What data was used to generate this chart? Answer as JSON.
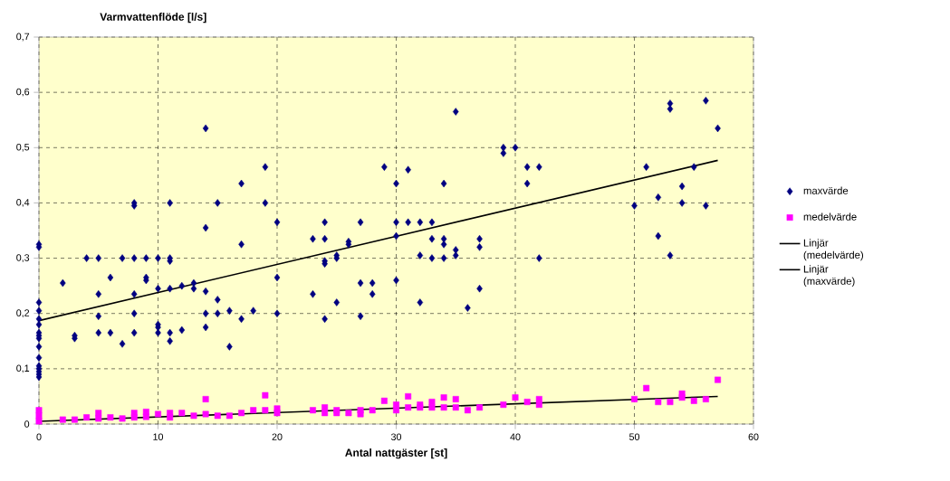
{
  "chart_data": {
    "type": "scatter",
    "xlabel": "Antal nattgäster [st]",
    "ylabel": "Varmvattenflöde [l/s]",
    "xlim": [
      0,
      60
    ],
    "xticks": [
      0,
      10,
      20,
      30,
      40,
      50,
      60
    ],
    "ylim": [
      0,
      0.7
    ],
    "yticks": [
      0,
      {
        "value": 0.1,
        "label": "0,1"
      },
      {
        "value": 0.2,
        "label": "0,2"
      },
      {
        "value": 0.3,
        "label": "0,3"
      },
      {
        "value": 0.4,
        "label": "0,4"
      },
      {
        "value": 0.5,
        "label": "0,5"
      },
      {
        "value": 0.6,
        "label": "0,6"
      },
      {
        "value": 0.7,
        "label": "0,7"
      }
    ],
    "grid": true,
    "legend": "right",
    "series": [
      {
        "name": "maxvärde",
        "marker": "diamond",
        "color": "#000080",
        "x": [
          0,
          0,
          0,
          0,
          0,
          0,
          0,
          0,
          0,
          0,
          0,
          0,
          0,
          0,
          0,
          0,
          2,
          3,
          3,
          4,
          5,
          5,
          5,
          5,
          6,
          6,
          7,
          7,
          8,
          8,
          8,
          8,
          8,
          8,
          9,
          9,
          9,
          10,
          10,
          10,
          10,
          10,
          11,
          11,
          11,
          11,
          11,
          11,
          12,
          12,
          13,
          13,
          14,
          14,
          14,
          14,
          14,
          15,
          15,
          15,
          16,
          16,
          17,
          17,
          17,
          18,
          19,
          19,
          20,
          20,
          20,
          23,
          23,
          24,
          24,
          24,
          24,
          24,
          25,
          25,
          25,
          26,
          26,
          27,
          27,
          27,
          28,
          28,
          29,
          30,
          30,
          30,
          30,
          31,
          31,
          32,
          32,
          32,
          33,
          33,
          33,
          34,
          34,
          34,
          34,
          35,
          35,
          35,
          36,
          37,
          37,
          37,
          39,
          39,
          40,
          41,
          41,
          42,
          42,
          50,
          51,
          52,
          52,
          53,
          53,
          53,
          54,
          54,
          55,
          56,
          56,
          57
        ],
        "values": [
          0.32,
          0.325,
          0.22,
          0.205,
          0.19,
          0.18,
          0.165,
          0.16,
          0.155,
          0.14,
          0.12,
          0.105,
          0.1,
          0.095,
          0.09,
          0.085,
          0.255,
          0.16,
          0.155,
          0.3,
          0.3,
          0.235,
          0.195,
          0.165,
          0.265,
          0.165,
          0.3,
          0.145,
          0.4,
          0.395,
          0.3,
          0.235,
          0.2,
          0.165,
          0.3,
          0.265,
          0.26,
          0.3,
          0.245,
          0.18,
          0.175,
          0.165,
          0.4,
          0.3,
          0.295,
          0.245,
          0.165,
          0.15,
          0.25,
          0.17,
          0.255,
          0.245,
          0.535,
          0.355,
          0.24,
          0.2,
          0.175,
          0.4,
          0.225,
          0.2,
          0.205,
          0.14,
          0.435,
          0.325,
          0.19,
          0.205,
          0.465,
          0.4,
          0.365,
          0.265,
          0.2,
          0.335,
          0.235,
          0.365,
          0.335,
          0.295,
          0.29,
          0.19,
          0.305,
          0.3,
          0.22,
          0.33,
          0.325,
          0.365,
          0.255,
          0.195,
          0.255,
          0.235,
          0.465,
          0.435,
          0.365,
          0.34,
          0.26,
          0.46,
          0.365,
          0.365,
          0.305,
          0.22,
          0.365,
          0.335,
          0.3,
          0.435,
          0.335,
          0.325,
          0.3,
          0.565,
          0.315,
          0.305,
          0.21,
          0.335,
          0.32,
          0.245,
          0.5,
          0.49,
          0.5,
          0.465,
          0.435,
          0.465,
          0.3,
          0.395,
          0.465,
          0.41,
          0.34,
          0.58,
          0.57,
          0.305,
          0.43,
          0.4,
          0.465,
          0.585,
          0.395,
          0.535
        ]
      },
      {
        "name": "medelvärde",
        "marker": "square",
        "color": "#ff00ff",
        "x": [
          0,
          0,
          0,
          2,
          3,
          4,
          5,
          5,
          6,
          7,
          8,
          8,
          9,
          9,
          10,
          11,
          11,
          12,
          13,
          14,
          14,
          15,
          16,
          17,
          18,
          19,
          19,
          20,
          20,
          23,
          24,
          24,
          25,
          25,
          26,
          27,
          27,
          28,
          29,
          30,
          30,
          31,
          31,
          32,
          32,
          33,
          33,
          34,
          34,
          35,
          35,
          36,
          37,
          39,
          40,
          41,
          42,
          42,
          50,
          51,
          52,
          53,
          54,
          54,
          55,
          56,
          57
        ],
        "values": [
          0.025,
          0.015,
          0.005,
          0.008,
          0.008,
          0.012,
          0.02,
          0.01,
          0.012,
          0.01,
          0.02,
          0.012,
          0.022,
          0.013,
          0.018,
          0.02,
          0.012,
          0.02,
          0.015,
          0.045,
          0.018,
          0.015,
          0.015,
          0.02,
          0.025,
          0.052,
          0.025,
          0.028,
          0.02,
          0.025,
          0.03,
          0.02,
          0.025,
          0.02,
          0.02,
          0.025,
          0.018,
          0.025,
          0.042,
          0.035,
          0.025,
          0.05,
          0.03,
          0.035,
          0.03,
          0.04,
          0.03,
          0.048,
          0.03,
          0.045,
          0.03,
          0.025,
          0.03,
          0.035,
          0.048,
          0.04,
          0.045,
          0.035,
          0.045,
          0.065,
          0.04,
          0.04,
          0.055,
          0.048,
          0.042,
          0.045,
          0.08
        ]
      },
      {
        "name": "Linjär (medelvärde)",
        "type": "line",
        "marker": "none",
        "color": "#000000",
        "x": [
          0,
          57
        ],
        "values": [
          0.005,
          0.05
        ]
      },
      {
        "name": "Linjär (maxvärde)",
        "type": "line",
        "marker": "none",
        "color": "#000000",
        "x": [
          0,
          57
        ],
        "values": [
          0.187,
          0.477
        ]
      }
    ]
  }
}
